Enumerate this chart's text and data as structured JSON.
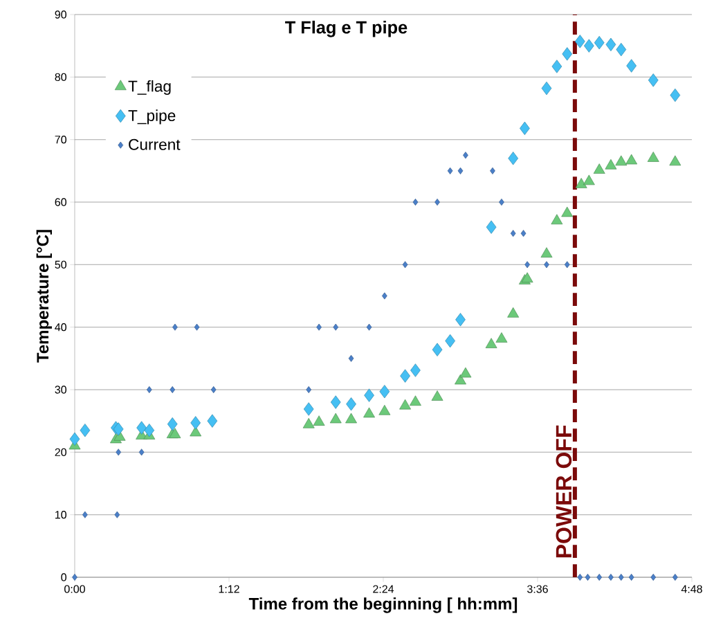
{
  "chart_data": {
    "type": "scatter",
    "title": "T Flag e T pipe",
    "xlabel": "Time from the beginning  [ hh:mm]",
    "ylabel": "Temperature [°C]",
    "xlim": [
      0,
      4.8
    ],
    "ylim": [
      0,
      90
    ],
    "xticks": [
      {
        "value": 0,
        "label": "0:00"
      },
      {
        "value": 1.2,
        "label": "1:12"
      },
      {
        "value": 2.4,
        "label": "2:24"
      },
      {
        "value": 3.6,
        "label": "3:36"
      },
      {
        "value": 4.8,
        "label": "4:48"
      }
    ],
    "yticks": [
      0,
      10,
      20,
      30,
      40,
      50,
      60,
      70,
      80,
      90
    ],
    "grid": "y",
    "legend": "top left",
    "ref_lines": [
      {
        "axis": "x",
        "value": 3.89,
        "label": "POWER OFF",
        "color": "#7b0a0a",
        "line_style": "dashed"
      }
    ],
    "series": [
      {
        "name": "T_flag",
        "color": "#6cc97a",
        "marker": "triangle",
        "x": [
          0,
          0.32,
          0.35,
          0.52,
          0.58,
          0.76,
          0.78,
          0.94,
          1.82,
          1.9,
          2.03,
          2.15,
          2.29,
          2.41,
          2.57,
          2.65,
          2.82,
          3.0,
          3.04,
          3.24,
          3.32,
          3.41,
          3.5,
          3.52,
          3.67,
          3.75,
          3.83,
          3.94,
          4.0,
          4.08,
          4.17,
          4.25,
          4.33,
          4.5,
          4.67
        ],
        "values": [
          21,
          22,
          22.4,
          22.6,
          22.6,
          22.8,
          22.8,
          23.1,
          24.4,
          24.8,
          25.2,
          25.2,
          26.1,
          26.5,
          27.4,
          28.0,
          28.8,
          31.4,
          32.5,
          37.2,
          38.1,
          42.1,
          47.4,
          47.7,
          51.7,
          57.0,
          58.2,
          62.8,
          63.3,
          65.1,
          65.8,
          66.4,
          66.6,
          67.0,
          66.4
        ]
      },
      {
        "name": "T_pipe",
        "color": "#45bff3",
        "marker": "diamond",
        "x": [
          0,
          0.08,
          0.32,
          0.34,
          0.52,
          0.58,
          0.76,
          0.94,
          1.07,
          1.82,
          2.03,
          2.15,
          2.29,
          2.41,
          2.57,
          2.65,
          2.82,
          2.92,
          3.0,
          3.24,
          3.41,
          3.5,
          3.67,
          3.75,
          3.83,
          3.93,
          4.0,
          4.08,
          4.17,
          4.25,
          4.33,
          4.5,
          4.67
        ],
        "values": [
          22.1,
          23.5,
          23.9,
          23.7,
          23.9,
          23.5,
          24.5,
          24.7,
          25.0,
          26.9,
          28.0,
          27.7,
          29.1,
          29.7,
          32.2,
          33.1,
          36.4,
          37.8,
          41.2,
          56.0,
          67.0,
          71.8,
          78.2,
          81.7,
          83.7,
          85.7,
          85.0,
          85.5,
          85.2,
          84.4,
          81.8,
          79.5,
          77.1
        ]
      },
      {
        "name": "Current",
        "color": "#4a7fc8",
        "marker": "diamond",
        "x": [
          0,
          0.08,
          0.33,
          0.34,
          0.52,
          0.58,
          0.76,
          0.78,
          0.95,
          1.08,
          1.82,
          1.9,
          2.03,
          2.15,
          2.29,
          2.41,
          2.57,
          2.65,
          2.82,
          2.92,
          3.0,
          3.04,
          3.25,
          3.32,
          3.41,
          3.49,
          3.52,
          3.67,
          3.83,
          3.93,
          3.99,
          4.08,
          4.17,
          4.25,
          4.33,
          4.5,
          4.67
        ],
        "values": [
          0,
          10,
          10,
          20,
          20,
          30,
          30,
          40,
          40,
          30,
          30,
          40,
          40,
          35,
          40,
          45,
          50,
          60,
          60,
          65,
          65,
          67.5,
          65,
          60,
          55,
          55,
          50,
          50,
          50,
          0,
          0,
          0,
          0,
          0,
          0,
          0,
          0
        ]
      }
    ]
  }
}
